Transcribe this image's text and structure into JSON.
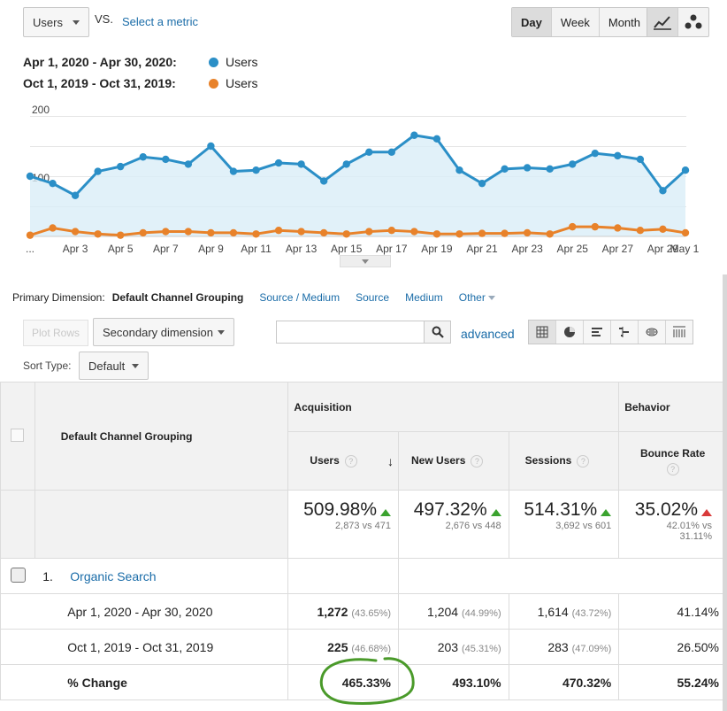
{
  "top": {
    "metric_select": "Users",
    "vs_label": "VS.",
    "select_metric_link": "Select a metric",
    "granularity": [
      "Day",
      "Week",
      "Month"
    ],
    "active_granularity": "Day",
    "chart_icons": [
      "line-chart-icon",
      "motion-chart-icon"
    ]
  },
  "legend": [
    {
      "range": "Apr 1, 2020 - Apr 30, 2020:",
      "metric": "Users",
      "color": "#2b8fc7"
    },
    {
      "range": "Oct 1, 2019 - Oct 31, 2019:",
      "metric": "Users",
      "color": "#e8822a"
    }
  ],
  "chart_data": {
    "type": "line",
    "y_ticks": [
      "200",
      "100"
    ],
    "ylim": [
      0,
      200
    ],
    "x_tick_labels": [
      "...",
      "Apr 3",
      "Apr 5",
      "Apr 7",
      "Apr 9",
      "Apr 11",
      "Apr 13",
      "Apr 15",
      "Apr 17",
      "Apr 19",
      "Apr 21",
      "Apr 23",
      "Apr 25",
      "Apr 27",
      "Apr 29",
      "May 1"
    ],
    "series": [
      {
        "name": "Users",
        "color": "#2b8fc7",
        "values": [
          100,
          88,
          68,
          108,
          116,
          132,
          128,
          120,
          150,
          108,
          110,
          122,
          120,
          92,
          120,
          140,
          140,
          168,
          162,
          110,
          88,
          112,
          114,
          112,
          120,
          138,
          134,
          128,
          76,
          110
        ]
      },
      {
        "name": "Users",
        "color": "#e8822a",
        "values": [
          2,
          14,
          8,
          4,
          2,
          6,
          8,
          8,
          6,
          6,
          4,
          10,
          8,
          6,
          4,
          8,
          10,
          8,
          4,
          4,
          5,
          5,
          6,
          4,
          16,
          16,
          14,
          10,
          12,
          6
        ]
      }
    ]
  },
  "dimension": {
    "label": "Primary Dimension:",
    "current": "Default Channel Grouping",
    "options": [
      "Source / Medium",
      "Source",
      "Medium",
      "Other"
    ]
  },
  "controls": {
    "plot_rows": "Plot Rows",
    "secondary_dimension": "Secondary dimension",
    "search_placeholder": "",
    "advanced_link": "advanced",
    "sort_type_label": "Sort Type:",
    "sort_type_value": "Default"
  },
  "table": {
    "row_header": "Default Channel Grouping",
    "group_acquisition": "Acquisition",
    "group_behavior": "Behavior",
    "columns": [
      "Users",
      "New Users",
      "Sessions",
      "Bounce Rate"
    ],
    "totals": [
      {
        "pct": "509.98%",
        "detail": "2,873 vs 471",
        "dir": "up"
      },
      {
        "pct": "497.32%",
        "detail": "2,676 vs 448",
        "dir": "up"
      },
      {
        "pct": "514.31%",
        "detail": "3,692 vs 601",
        "dir": "up"
      },
      {
        "pct": "35.02%",
        "detail": "42.01% vs 31.11%",
        "dir": "up-red"
      }
    ],
    "row1_index": "1.",
    "row1_name": "Organic Search",
    "sub_rows": [
      {
        "label": "Apr 1, 2020 - Apr 30, 2020",
        "users": "1,272",
        "users_pct": "(43.65%)",
        "new_users": "1,204",
        "new_users_pct": "(44.99%)",
        "sessions": "1,614",
        "sessions_pct": "(43.72%)",
        "bounce": "41.14%"
      },
      {
        "label": "Oct 1, 2019 - Oct 31, 2019",
        "users": "225",
        "users_pct": "(46.68%)",
        "new_users": "203",
        "new_users_pct": "(45.31%)",
        "sessions": "283",
        "sessions_pct": "(47.09%)",
        "bounce": "26.50%"
      },
      {
        "label": "% Change",
        "users": "465.33%",
        "new_users": "493.10%",
        "sessions": "470.32%",
        "bounce": "55.24%"
      }
    ]
  }
}
